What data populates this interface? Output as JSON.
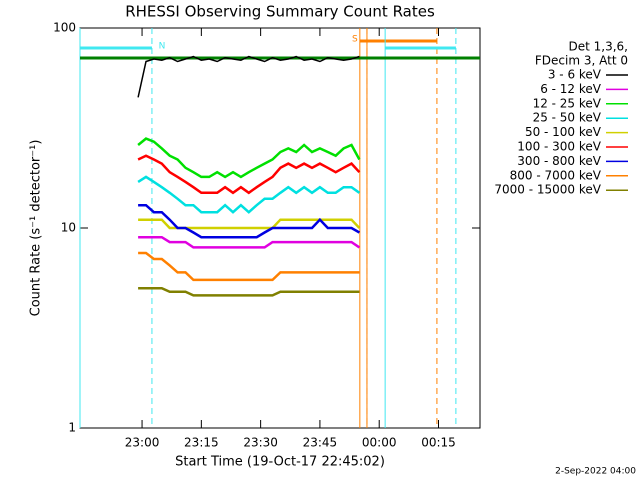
{
  "chart_data": {
    "type": "line",
    "title": "RHESSI Observing Summary Count Rates",
    "xlabel": "Start Time (19-Oct-17 22:45:02)",
    "ylabel": "Count Rate (s⁻¹ detector⁻¹)",
    "footer": "2-Sep-2022 04:00",
    "legend_header": [
      "Det 1,3,6,",
      "FDecim 3, Att 0"
    ],
    "legend_position": "right",
    "ylog": true,
    "xlim": [
      1364.3,
      1465.5
    ],
    "ylim": [
      1,
      100
    ],
    "xticks": [
      {
        "value": 1380,
        "label": "23:00"
      },
      {
        "value": 1395,
        "label": "23:15"
      },
      {
        "value": 1410,
        "label": "23:30"
      },
      {
        "value": 1425,
        "label": "23:45"
      },
      {
        "value": 1440,
        "label": "00:00"
      },
      {
        "value": 1455,
        "label": "00:15"
      }
    ],
    "yticks": [
      1,
      10,
      100
    ],
    "x": [
      1379,
      1381,
      1383,
      1385,
      1387,
      1389,
      1391,
      1393,
      1395,
      1397,
      1399,
      1401,
      1403,
      1405,
      1407,
      1409,
      1411,
      1413,
      1415,
      1417,
      1419,
      1421,
      1423,
      1425,
      1427,
      1429,
      1431,
      1433,
      1435
    ],
    "series": [
      {
        "name": "3 - 6 keV",
        "color": "#000000",
        "values": [
          45,
          68,
          70,
          69,
          71,
          68,
          70,
          72,
          69,
          70,
          68,
          71,
          70,
          69,
          72,
          70,
          68,
          71,
          69,
          70,
          72,
          69,
          70,
          68,
          71,
          70,
          69,
          70,
          72
        ]
      },
      {
        "name": "6 - 12 keV",
        "color": "#e000e0",
        "values": [
          9,
          9,
          9,
          9,
          8.5,
          8.5,
          8.5,
          8,
          8,
          8,
          8,
          8,
          8,
          8,
          8,
          8,
          8,
          8.5,
          8.5,
          8.5,
          8.5,
          8.5,
          8.5,
          8.5,
          8.5,
          8.5,
          8.5,
          8.5,
          8
        ]
      },
      {
        "name": "12 - 25 keV",
        "color": "#00e000",
        "values": [
          26,
          28,
          27,
          25,
          23,
          22,
          20,
          19,
          18,
          18,
          19,
          18,
          19,
          18,
          19,
          20,
          21,
          22,
          24,
          25,
          24,
          26,
          24,
          25,
          24,
          23,
          25,
          26,
          22
        ]
      },
      {
        "name": "25 - 50 keV",
        "color": "#00e0e0",
        "values": [
          17,
          18,
          17,
          16,
          15,
          14,
          13,
          13,
          12,
          12,
          12,
          13,
          12,
          13,
          12,
          13,
          14,
          14,
          15,
          16,
          15,
          16,
          15,
          16,
          15,
          15,
          16,
          16,
          15
        ]
      },
      {
        "name": "50 - 100 keV",
        "color": "#d0d000",
        "values": [
          11,
          11,
          11,
          11,
          10,
          10,
          10,
          10,
          10,
          10,
          10,
          10,
          10,
          10,
          10,
          10,
          10,
          10,
          11,
          11,
          11,
          11,
          11,
          11,
          11,
          11,
          11,
          11,
          10
        ]
      },
      {
        "name": "100 - 300 keV",
        "color": "#ff0000",
        "values": [
          22,
          23,
          22,
          21,
          19,
          18,
          17,
          16,
          15,
          15,
          15,
          16,
          15,
          16,
          15,
          16,
          17,
          18,
          20,
          21,
          20,
          21,
          20,
          21,
          20,
          19,
          20,
          21,
          19
        ]
      },
      {
        "name": "300 - 800 keV",
        "color": "#0000e0",
        "values": [
          13,
          13,
          12,
          12,
          11,
          10,
          10,
          9.5,
          9,
          9,
          9,
          9,
          9,
          9,
          9,
          9,
          9.5,
          10,
          10,
          10,
          10,
          10,
          10,
          11,
          10,
          10,
          10,
          10,
          9.5
        ]
      },
      {
        "name": "800 - 7000 keV",
        "color": "#ff8000",
        "values": [
          7.5,
          7.5,
          7,
          7,
          6.5,
          6,
          6,
          5.5,
          5.5,
          5.5,
          5.5,
          5.5,
          5.5,
          5.5,
          5.5,
          5.5,
          5.5,
          5.5,
          6,
          6,
          6,
          6,
          6,
          6,
          6,
          6,
          6,
          6,
          6
        ]
      },
      {
        "name": "7000 - 15000 keV",
        "color": "#808000",
        "values": [
          5,
          5,
          5,
          5,
          4.8,
          4.8,
          4.8,
          4.6,
          4.6,
          4.6,
          4.6,
          4.6,
          4.6,
          4.6,
          4.6,
          4.6,
          4.6,
          4.6,
          4.8,
          4.8,
          4.8,
          4.8,
          4.8,
          4.8,
          4.8,
          4.8,
          4.8,
          4.8,
          4.8
        ]
      }
    ],
    "flags": [
      {
        "label": "S",
        "color": "#ff8000",
        "intervals": [
          [
            1435.1,
            1436.9
          ],
          [
            1436.9,
            1454.6
          ]
        ]
      },
      {
        "label": "N",
        "color": "#40e8f0",
        "intervals": [
          [
            1364.3,
            1382.5
          ],
          [
            1441.5,
            1459.4
          ]
        ]
      },
      {
        "color": "#008000",
        "intervals": [
          [
            1364.3,
            1465.5
          ]
        ]
      }
    ]
  }
}
